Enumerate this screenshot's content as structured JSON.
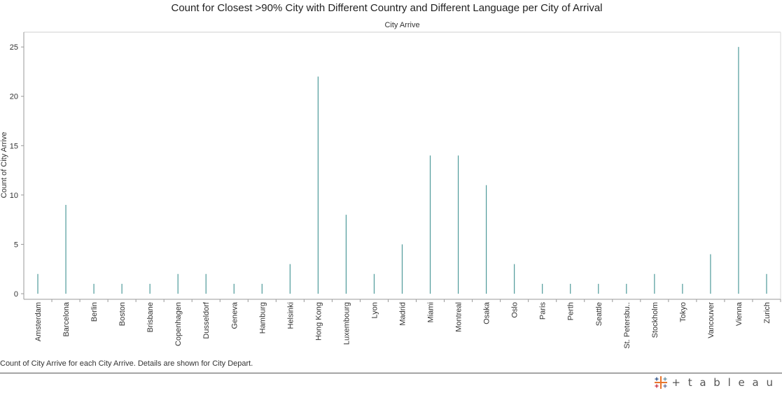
{
  "title": "Count for Closest >90% City with Different Country and Different Language per City of Arrival",
  "column_header": "City Arrive",
  "caption": "Count of City Arrive for each City Arrive.  Details are shown for City Depart.",
  "logo": {
    "text": "+ t a b l e a u",
    "icon": "tableau-logo-icon"
  },
  "colors": {
    "mark": "#4e9a9a",
    "axis": "#999999",
    "gridline": "#e8e8e8"
  },
  "chart_data": {
    "type": "bar",
    "title": "Count for Closest >90% City with Different Country and Different Language per City of Arrival",
    "xlabel": "City Arrive",
    "ylabel": "Count of City Arrive",
    "ylim": [
      0,
      26.5
    ],
    "yticks": [
      0,
      5,
      10,
      15,
      20,
      25
    ],
    "categories": [
      "Amsterdam",
      "Barcelona",
      "Berlin",
      "Boston",
      "Brisbane",
      "Copenhagen",
      "Dusseldorf",
      "Geneva",
      "Hamburg",
      "Helsinki",
      "Hong Kong",
      "Luxembourg",
      "Lyon",
      "Madrid",
      "Miami",
      "Montreal",
      "Osaka",
      "Oslo",
      "Paris",
      "Perth",
      "Seattle",
      "St. Petersbu..",
      "Stockholm",
      "Tokyo",
      "Vancouver",
      "Vienna",
      "Zurich"
    ],
    "values": [
      2,
      9,
      1,
      1,
      1,
      2,
      2,
      1,
      1,
      3,
      22,
      8,
      2,
      5,
      14,
      14,
      11,
      3,
      1,
      1,
      1,
      1,
      2,
      1,
      4,
      25,
      2
    ],
    "grid": false,
    "legend": "none"
  }
}
